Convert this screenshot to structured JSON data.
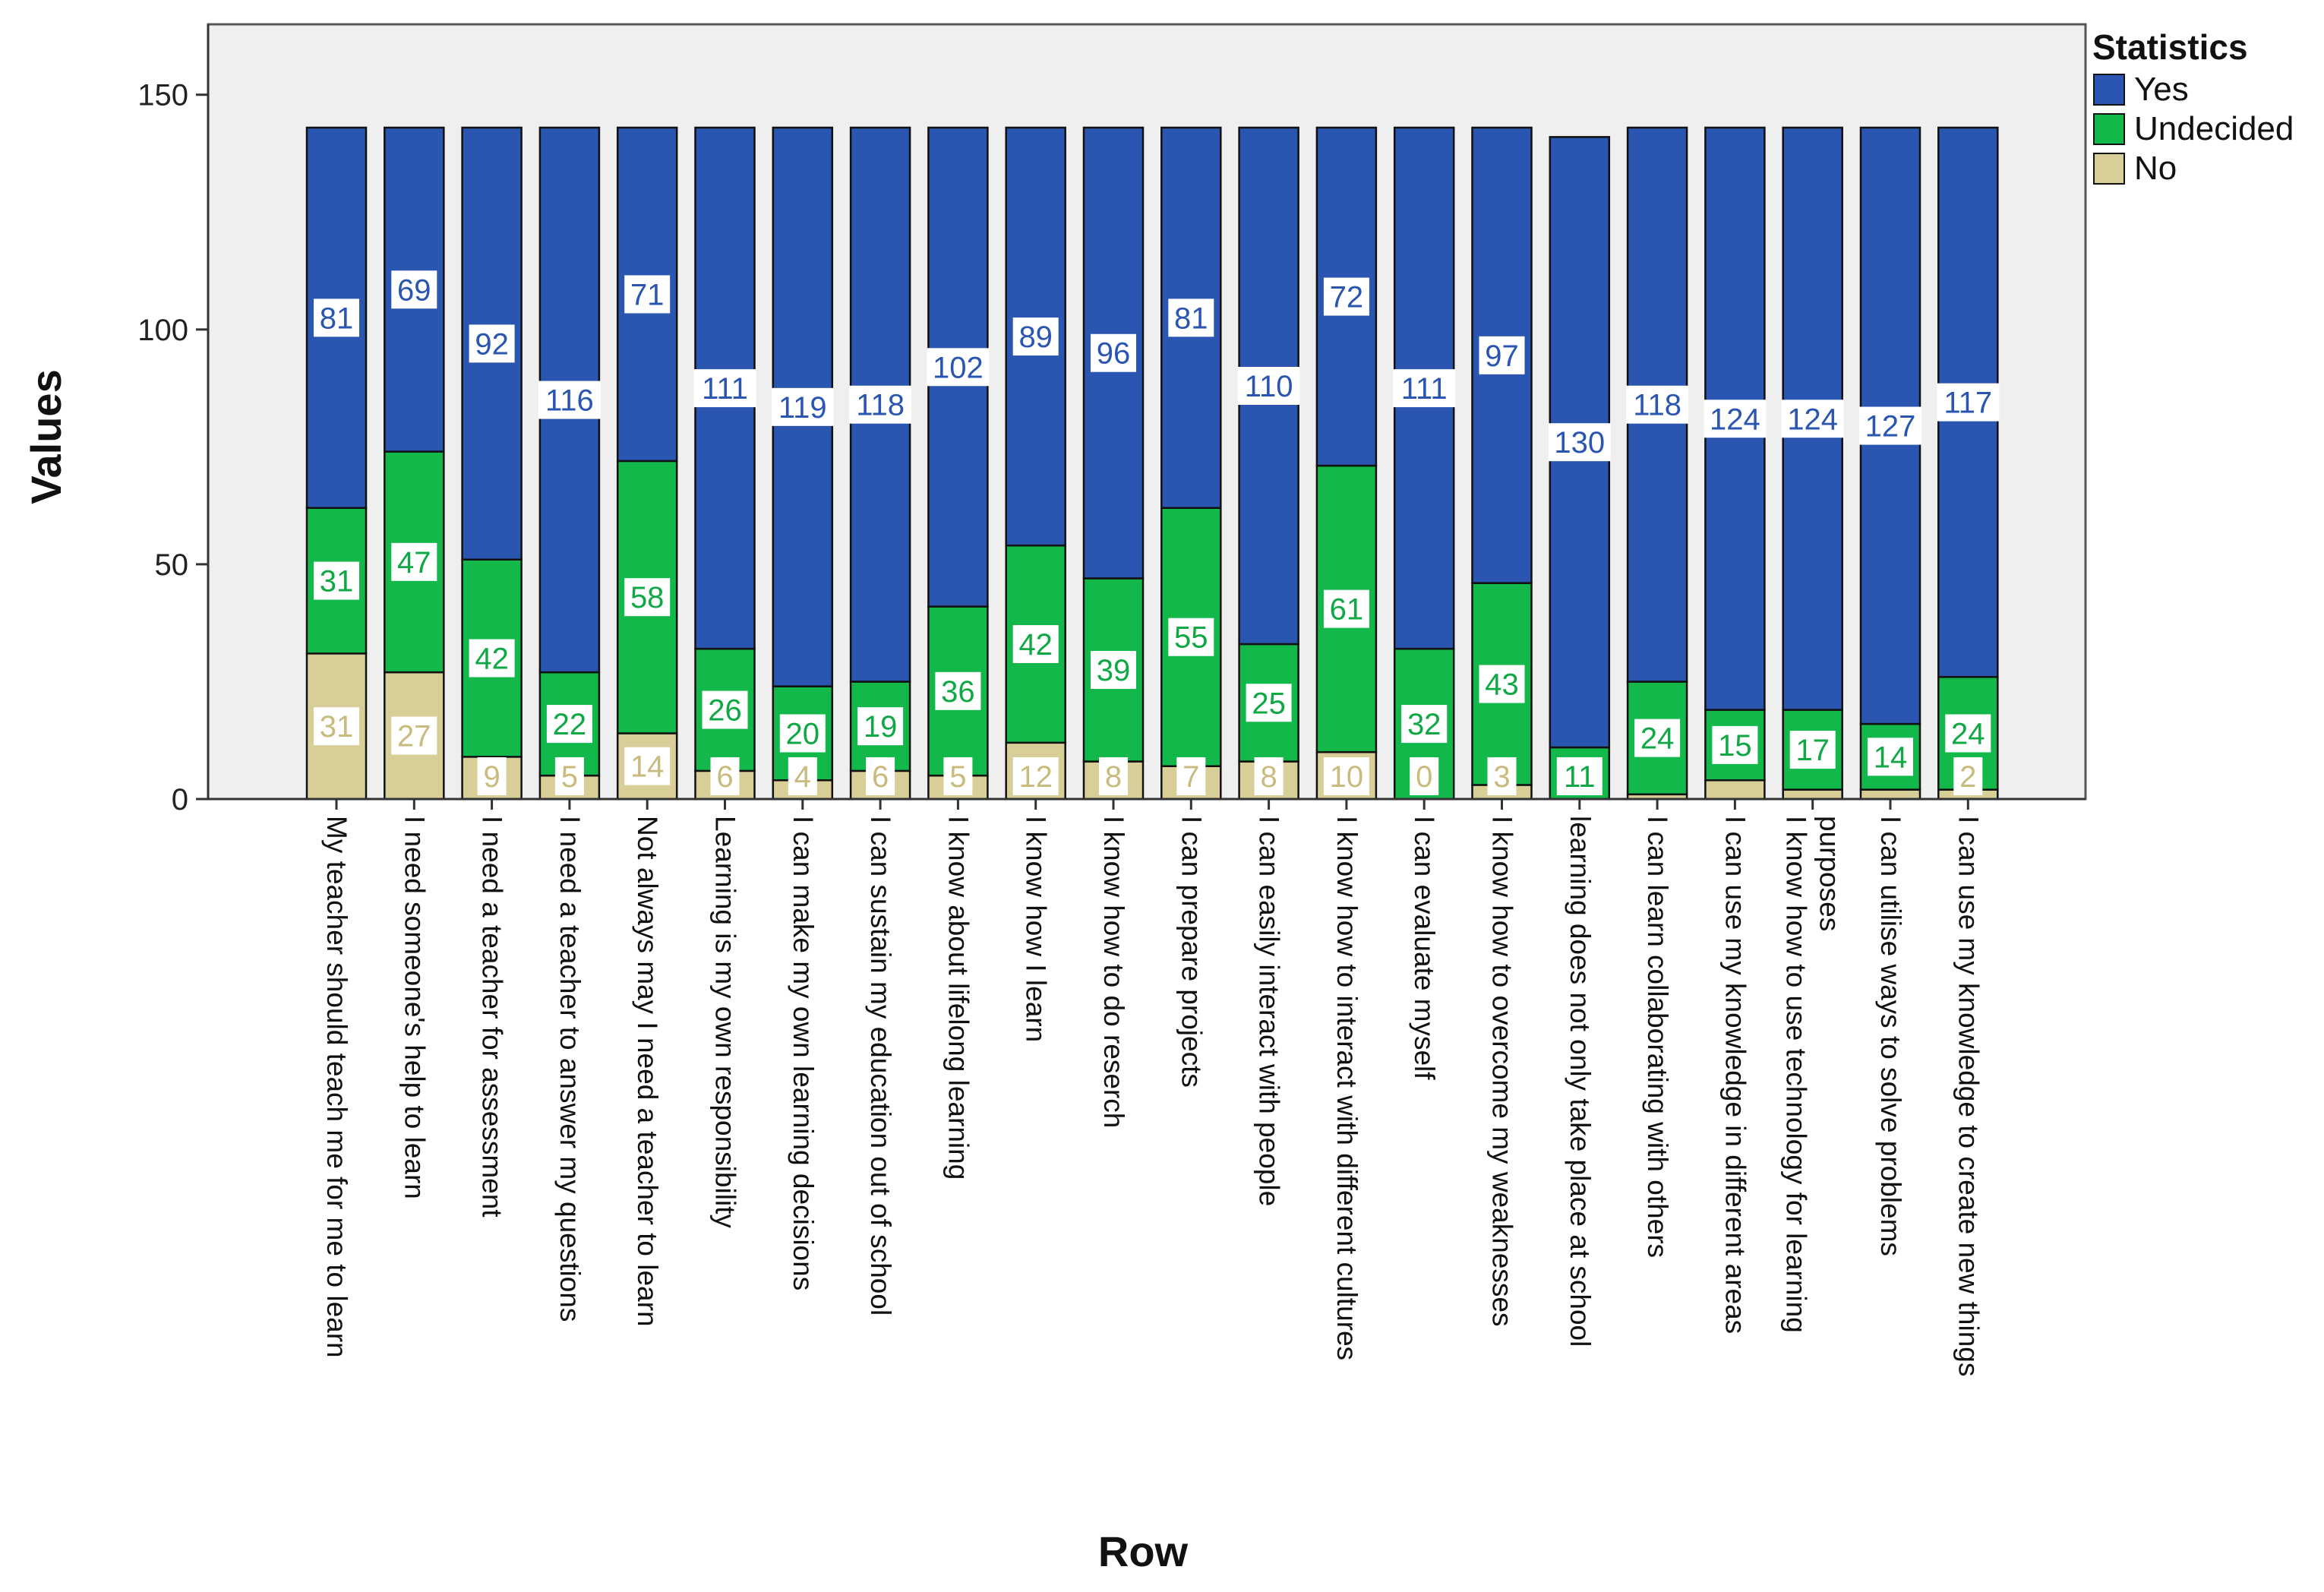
{
  "chart_data": {
    "type": "bar",
    "stacked": true,
    "title": "",
    "xlabel": "Row",
    "ylabel": "Values",
    "ylim": [
      0,
      165
    ],
    "yticks": [
      0,
      50,
      100,
      150
    ],
    "legend": {
      "title": "Statistics",
      "position": "top-right"
    },
    "categories": [
      "My teacher should teach me for me to learn",
      "I need someone's help to learn",
      "I need a teacher for assessment",
      "I need a teacher to answer my questions",
      "Not always may I need a teacher to learn",
      "Learning is my own responsibility",
      "I can make my own learning decisions",
      "I can sustain my education out of school",
      "I know about lifelong learning",
      "I know how I learn",
      "I know how to do reserch",
      "I can prepare projects",
      "I can easily interact with people",
      "I know how to interact with different cultures",
      "I can evaluate myself",
      "I know how to overcome my weaknesses",
      "learning does not only take place at school",
      "I can learn collaborating with others",
      "I can use my knowledge in different areas",
      [
        "I know how to use technology for learning",
        "purposes"
      ],
      "I can utilise ways to solve problems",
      "I can use my knowledge to create new things"
    ],
    "series": [
      {
        "name": "No",
        "color": "#d8cf98",
        "label_color": "#c9bb7e",
        "values": [
          31,
          27,
          9,
          5,
          14,
          6,
          4,
          6,
          5,
          12,
          8,
          7,
          8,
          10,
          0,
          3,
          0,
          1,
          4,
          2,
          2,
          2
        ],
        "labels": [
          "31",
          "27",
          "9",
          "5",
          "14",
          "6",
          "4",
          "6",
          "5",
          "12",
          "8",
          "7",
          "8",
          "10",
          "0",
          "3",
          "",
          "",
          "",
          "",
          "",
          "2"
        ]
      },
      {
        "name": "Undecided",
        "color": "#13b84b",
        "label_color": "#10a844",
        "values": [
          31,
          47,
          42,
          22,
          58,
          26,
          20,
          19,
          36,
          42,
          39,
          55,
          25,
          61,
          32,
          43,
          11,
          24,
          15,
          17,
          14,
          24
        ],
        "labels": [
          "31",
          "47",
          "42",
          "22",
          "58",
          "26",
          "20",
          "19",
          "36",
          "42",
          "39",
          "55",
          "25",
          "61",
          "32",
          "43",
          "11",
          "24",
          "15",
          "17",
          "14",
          "24"
        ]
      },
      {
        "name": "Yes",
        "color": "#2a55b0",
        "label_color": "#2a55b0",
        "values": [
          81,
          69,
          92,
          116,
          71,
          111,
          119,
          118,
          102,
          89,
          96,
          81,
          110,
          72,
          111,
          97,
          130,
          118,
          124,
          124,
          127,
          117
        ],
        "labels": [
          "81",
          "69",
          "92",
          "116",
          "71",
          "111",
          "119",
          "118",
          "102",
          "89",
          "96",
          "81",
          "110",
          "72",
          "111",
          "97",
          "130",
          "118",
          "124",
          "124",
          "127",
          "117"
        ]
      }
    ]
  }
}
